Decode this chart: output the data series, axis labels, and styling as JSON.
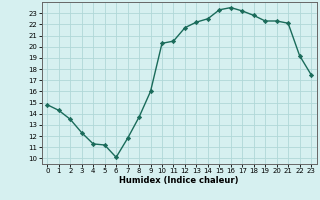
{
  "x": [
    0,
    1,
    2,
    3,
    4,
    5,
    6,
    7,
    8,
    9,
    10,
    11,
    12,
    13,
    14,
    15,
    16,
    17,
    18,
    19,
    20,
    21,
    22,
    23
  ],
  "y": [
    14.8,
    14.3,
    13.5,
    12.3,
    11.3,
    11.2,
    10.1,
    11.8,
    13.7,
    16.0,
    20.3,
    20.5,
    21.7,
    22.2,
    22.5,
    23.3,
    23.5,
    23.2,
    22.8,
    22.3,
    22.3,
    22.1,
    19.2,
    17.5
  ],
  "line_color": "#1a6b5a",
  "marker_color": "#1a6b5a",
  "bg_color": "#d6f0f0",
  "grid_color": "#b0d8d8",
  "xlabel": "Humidex (Indice chaleur)",
  "xlim": [
    -0.5,
    23.5
  ],
  "ylim": [
    9.5,
    24.0
  ],
  "yticks": [
    10,
    11,
    12,
    13,
    14,
    15,
    16,
    17,
    18,
    19,
    20,
    21,
    22,
    23
  ],
  "xticks": [
    0,
    1,
    2,
    3,
    4,
    5,
    6,
    7,
    8,
    9,
    10,
    11,
    12,
    13,
    14,
    15,
    16,
    17,
    18,
    19,
    20,
    21,
    22,
    23
  ],
  "tick_fontsize": 5.0,
  "xlabel_fontsize": 6.0,
  "linewidth": 1.0,
  "markersize": 2.2
}
